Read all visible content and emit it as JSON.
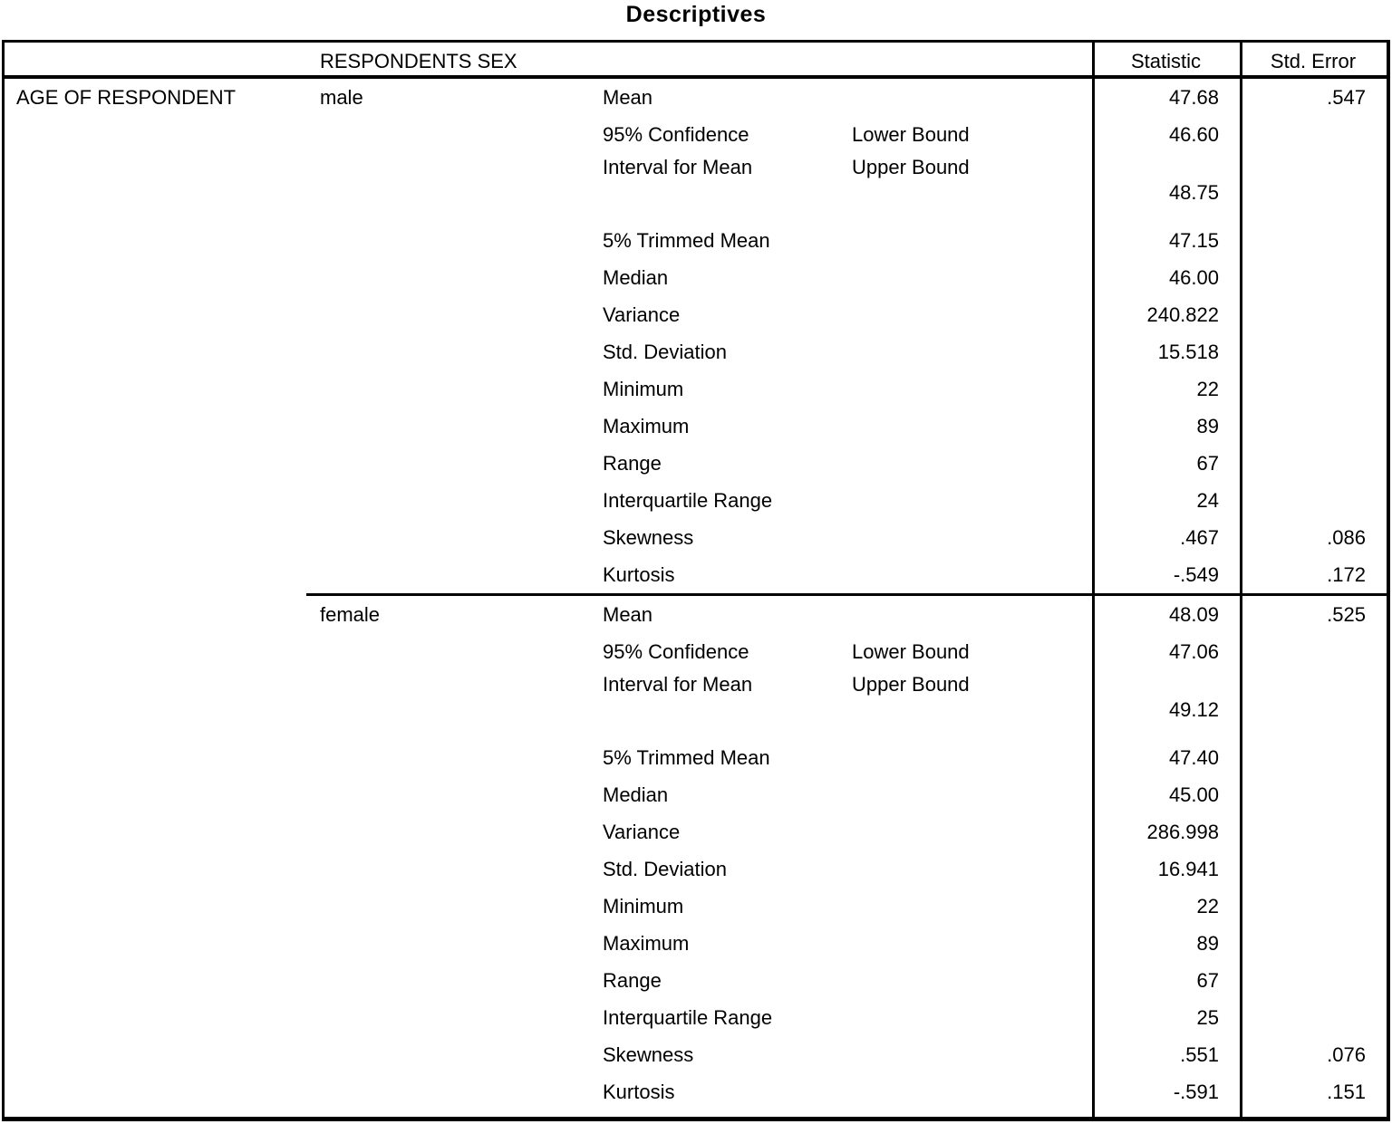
{
  "title": "Descriptives",
  "table": {
    "sex_header": "RESPONDENTS SEX",
    "col_statistic": "Statistic",
    "col_std_error": "Std. Error",
    "row_header": "AGE OF RESPONDENT",
    "groups": [
      {
        "label": "male",
        "rows": [
          {
            "label": "Mean",
            "sub": "",
            "statistic": "47.68",
            "std_error": ".547"
          },
          {
            "label": "95% Confidence",
            "sub": "Lower Bound",
            "statistic": "46.60",
            "std_error": ""
          },
          {
            "label": "Interval for Mean",
            "sub": "Upper Bound",
            "statistic": "48.75",
            "std_error": ""
          },
          {
            "label": "5% Trimmed Mean",
            "sub": "",
            "statistic": "47.15",
            "std_error": ""
          },
          {
            "label": "Median",
            "sub": "",
            "statistic": "46.00",
            "std_error": ""
          },
          {
            "label": "Variance",
            "sub": "",
            "statistic": "240.822",
            "std_error": ""
          },
          {
            "label": "Std. Deviation",
            "sub": "",
            "statistic": "15.518",
            "std_error": ""
          },
          {
            "label": "Minimum",
            "sub": "",
            "statistic": "22",
            "std_error": ""
          },
          {
            "label": "Maximum",
            "sub": "",
            "statistic": "89",
            "std_error": ""
          },
          {
            "label": "Range",
            "sub": "",
            "statistic": "67",
            "std_error": ""
          },
          {
            "label": "Interquartile Range",
            "sub": "",
            "statistic": "24",
            "std_error": ""
          },
          {
            "label": "Skewness",
            "sub": "",
            "statistic": ".467",
            "std_error": ".086"
          },
          {
            "label": "Kurtosis",
            "sub": "",
            "statistic": "-.549",
            "std_error": ".172"
          }
        ]
      },
      {
        "label": "female",
        "rows": [
          {
            "label": "Mean",
            "sub": "",
            "statistic": "48.09",
            "std_error": ".525"
          },
          {
            "label": "95% Confidence",
            "sub": "Lower Bound",
            "statistic": "47.06",
            "std_error": ""
          },
          {
            "label": "Interval for Mean",
            "sub": "Upper Bound",
            "statistic": "49.12",
            "std_error": ""
          },
          {
            "label": "5% Trimmed Mean",
            "sub": "",
            "statistic": "47.40",
            "std_error": ""
          },
          {
            "label": "Median",
            "sub": "",
            "statistic": "45.00",
            "std_error": ""
          },
          {
            "label": "Variance",
            "sub": "",
            "statistic": "286.998",
            "std_error": ""
          },
          {
            "label": "Std. Deviation",
            "sub": "",
            "statistic": "16.941",
            "std_error": ""
          },
          {
            "label": "Minimum",
            "sub": "",
            "statistic": "22",
            "std_error": ""
          },
          {
            "label": "Maximum",
            "sub": "",
            "statistic": "89",
            "std_error": ""
          },
          {
            "label": "Range",
            "sub": "",
            "statistic": "67",
            "std_error": ""
          },
          {
            "label": "Interquartile Range",
            "sub": "",
            "statistic": "25",
            "std_error": ""
          },
          {
            "label": "Skewness",
            "sub": "",
            "statistic": ".551",
            "std_error": ".076"
          },
          {
            "label": "Kurtosis",
            "sub": "",
            "statistic": "-.591",
            "std_error": ".151"
          }
        ]
      }
    ]
  }
}
